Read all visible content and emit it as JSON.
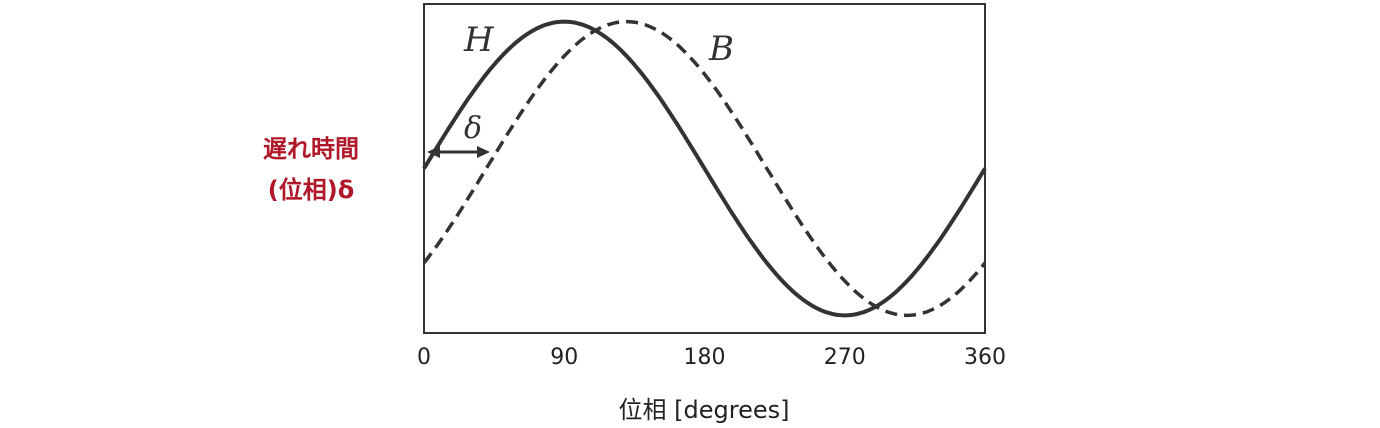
{
  "chart_data": {
    "type": "line",
    "xlabel": "位相 [degrees]",
    "ylabel": "",
    "xlim": [
      0,
      360
    ],
    "ylim": [
      -1.12,
      1.12
    ],
    "x_ticks": [
      "0",
      "90",
      "180",
      "270",
      "360"
    ],
    "y_ticks": [],
    "grid": false,
    "phase_lag_deg": 40,
    "series": [
      {
        "name": "H",
        "style": "solid",
        "color": "#333333",
        "x": [
          0,
          15,
          30,
          45,
          60,
          75,
          90,
          105,
          120,
          135,
          150,
          165,
          180,
          195,
          210,
          225,
          240,
          255,
          270,
          285,
          300,
          315,
          330,
          345,
          360
        ],
        "y": [
          0,
          0.26,
          0.5,
          0.71,
          0.87,
          0.97,
          1,
          0.97,
          0.87,
          0.71,
          0.5,
          0.26,
          0,
          -0.26,
          -0.5,
          -0.71,
          -0.87,
          -0.97,
          -1,
          -0.97,
          -0.87,
          -0.71,
          -0.5,
          -0.26,
          0
        ]
      },
      {
        "name": "B",
        "style": "dashed",
        "color": "#333333",
        "x": [
          0,
          15,
          30,
          45,
          60,
          75,
          90,
          105,
          120,
          135,
          150,
          165,
          180,
          195,
          210,
          225,
          240,
          255,
          270,
          285,
          300,
          315,
          330,
          345,
          360
        ],
        "y": [
          -0.64,
          -0.42,
          -0.17,
          0.09,
          0.34,
          0.57,
          0.77,
          0.91,
          0.98,
          1,
          0.94,
          0.82,
          0.64,
          0.42,
          0.17,
          -0.09,
          -0.34,
          -0.57,
          -0.77,
          -0.91,
          -0.98,
          -1,
          -0.94,
          -0.82,
          -0.64
        ]
      }
    ],
    "annotations": {
      "delta_symbol": "δ",
      "lag_label_line1": "遅れ時間",
      "lag_label_line2": "(位相)δ"
    }
  },
  "colors": {
    "curve": "#333333",
    "axis": "#333333",
    "annotation": "#b0182a"
  }
}
